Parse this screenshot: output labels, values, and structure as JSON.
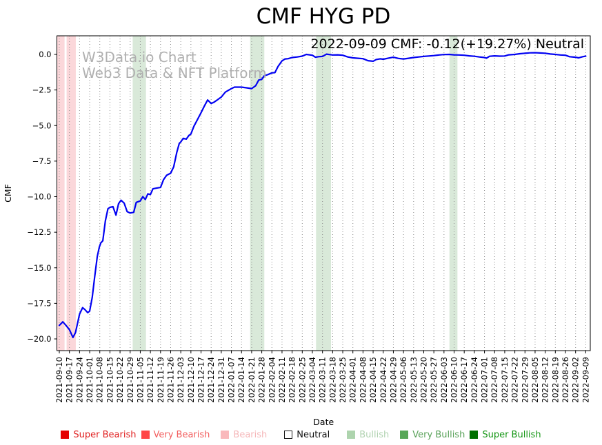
{
  "watermark": {
    "line1": "W3Data.io Chart",
    "line2": "Web3 Data & NFT Platform"
  },
  "chart_data": {
    "type": "line",
    "title": "CMF HYG PD",
    "annotation": "2022-09-09 CMF: -0.12(+19.27%) Neutral",
    "xlabel": "Date",
    "ylabel": "CMF",
    "ylim": [
      -20.8,
      1.3
    ],
    "grid": "vertical-dotted",
    "legend_position": "bottom",
    "line_color": "#0202f2",
    "ytick_values": [
      0.0,
      -2.5,
      -5.0,
      -7.5,
      -10.0,
      -12.5,
      -15.0,
      -17.5,
      -20.0
    ],
    "ytick_labels": [
      "0.0",
      "−2.5",
      "−5.0",
      "−7.5",
      "−10.0",
      "−12.5",
      "−15.0",
      "−17.5",
      "−20.0"
    ],
    "categories": [
      "2021-09-10",
      "2021-09-17",
      "2021-09-24",
      "2021-10-01",
      "2021-10-08",
      "2021-10-15",
      "2021-10-22",
      "2021-10-29",
      "2021-11-05",
      "2021-11-12",
      "2021-11-19",
      "2021-11-26",
      "2021-12-03",
      "2021-12-10",
      "2021-12-17",
      "2021-12-24",
      "2021-12-31",
      "2022-01-07",
      "2022-01-14",
      "2022-01-21",
      "2022-01-28",
      "2022-02-04",
      "2022-02-11",
      "2022-02-18",
      "2022-02-25",
      "2022-03-04",
      "2022-03-11",
      "2022-03-18",
      "2022-03-25",
      "2022-04-01",
      "2022-04-08",
      "2022-04-15",
      "2022-04-22",
      "2022-04-29",
      "2022-05-06",
      "2022-05-13",
      "2022-05-20",
      "2022-05-27",
      "2022-06-03",
      "2022-06-10",
      "2022-06-17",
      "2022-06-24",
      "2022-07-01",
      "2022-07-08",
      "2022-07-15",
      "2022-07-22",
      "2022-07-29",
      "2022-08-05",
      "2022-08-12",
      "2022-08-19",
      "2022-08-26",
      "2022-09-02",
      "2022-09-09"
    ],
    "values": [
      -19.05,
      -19.35,
      -18.25,
      -18.05,
      -13.5,
      -10.75,
      -10.3,
      -11.15,
      -10.3,
      -9.85,
      -9.35,
      -8.35,
      -6.15,
      -5.6,
      -4.1,
      -3.45,
      -3.0,
      -2.4,
      -2.3,
      -2.4,
      -1.75,
      -1.3,
      -0.45,
      -0.22,
      -0.12,
      -0.06,
      -0.14,
      -0.04,
      -0.06,
      -0.24,
      -0.3,
      -0.48,
      -0.34,
      -0.2,
      -0.32,
      -0.22,
      -0.14,
      -0.08,
      -0.01,
      -0.03,
      -0.06,
      -0.13,
      -0.22,
      -0.1,
      -0.11,
      0.0,
      0.08,
      0.12,
      0.08,
      0.0,
      -0.06,
      -0.2,
      -0.12
    ],
    "curve_points": [
      [
        0,
        -19.05
      ],
      [
        0.35,
        -18.8
      ],
      [
        0.6,
        -19.0
      ],
      [
        1.0,
        -19.35
      ],
      [
        1.35,
        -19.9
      ],
      [
        1.6,
        -19.55
      ],
      [
        2.0,
        -18.25
      ],
      [
        2.3,
        -17.8
      ],
      [
        2.55,
        -17.95
      ],
      [
        2.8,
        -18.15
      ],
      [
        3.0,
        -18.05
      ],
      [
        3.25,
        -17.1
      ],
      [
        3.5,
        -15.6
      ],
      [
        3.75,
        -14.2
      ],
      [
        3.95,
        -13.55
      ],
      [
        4.1,
        -13.25
      ],
      [
        4.3,
        -13.1
      ],
      [
        4.55,
        -11.7
      ],
      [
        4.8,
        -10.85
      ],
      [
        5.0,
        -10.75
      ],
      [
        5.3,
        -10.7
      ],
      [
        5.6,
        -11.3
      ],
      [
        5.85,
        -10.5
      ],
      [
        6.1,
        -10.25
      ],
      [
        6.4,
        -10.45
      ],
      [
        6.7,
        -11.05
      ],
      [
        7.0,
        -11.15
      ],
      [
        7.35,
        -11.1
      ],
      [
        7.6,
        -10.4
      ],
      [
        8.0,
        -10.3
      ],
      [
        8.25,
        -10.0
      ],
      [
        8.5,
        -10.2
      ],
      [
        8.75,
        -9.8
      ],
      [
        9.0,
        -9.85
      ],
      [
        9.25,
        -9.45
      ],
      [
        9.6,
        -9.4
      ],
      [
        10.0,
        -9.35
      ],
      [
        10.3,
        -8.8
      ],
      [
        10.6,
        -8.5
      ],
      [
        11.0,
        -8.35
      ],
      [
        11.3,
        -7.9
      ],
      [
        11.6,
        -6.9
      ],
      [
        11.85,
        -6.25
      ],
      [
        12.0,
        -6.15
      ],
      [
        12.25,
        -5.9
      ],
      [
        12.55,
        -5.95
      ],
      [
        12.8,
        -5.7
      ],
      [
        13.0,
        -5.6
      ],
      [
        13.3,
        -5.05
      ],
      [
        13.6,
        -4.65
      ],
      [
        14.0,
        -4.1
      ],
      [
        14.35,
        -3.6
      ],
      [
        14.65,
        -3.2
      ],
      [
        15.0,
        -3.45
      ],
      [
        15.3,
        -3.35
      ],
      [
        15.6,
        -3.2
      ],
      [
        16.0,
        -3.0
      ],
      [
        16.4,
        -2.65
      ],
      [
        17.0,
        -2.4
      ],
      [
        17.3,
        -2.3
      ],
      [
        18.0,
        -2.3
      ],
      [
        18.5,
        -2.35
      ],
      [
        19.0,
        -2.4
      ],
      [
        19.4,
        -2.2
      ],
      [
        19.7,
        -1.8
      ],
      [
        20.0,
        -1.75
      ],
      [
        20.25,
        -1.5
      ],
      [
        20.6,
        -1.42
      ],
      [
        21.0,
        -1.3
      ],
      [
        21.3,
        -1.28
      ],
      [
        21.6,
        -0.85
      ],
      [
        22.0,
        -0.45
      ],
      [
        22.3,
        -0.32
      ],
      [
        22.6,
        -0.3
      ],
      [
        23.0,
        -0.22
      ],
      [
        23.5,
        -0.18
      ],
      [
        24.0,
        -0.12
      ],
      [
        24.4,
        0.0
      ],
      [
        25.0,
        -0.06
      ],
      [
        25.3,
        -0.2
      ],
      [
        25.6,
        -0.16
      ],
      [
        26.0,
        -0.14
      ],
      [
        26.4,
        0.02
      ],
      [
        27.0,
        -0.04
      ],
      [
        27.5,
        -0.03
      ],
      [
        28.0,
        -0.06
      ],
      [
        28.5,
        -0.18
      ],
      [
        29.0,
        -0.24
      ],
      [
        29.5,
        -0.27
      ],
      [
        30.0,
        -0.3
      ],
      [
        30.5,
        -0.44
      ],
      [
        31.0,
        -0.48
      ],
      [
        31.3,
        -0.36
      ],
      [
        31.7,
        -0.31
      ],
      [
        32.0,
        -0.34
      ],
      [
        32.5,
        -0.26
      ],
      [
        33.0,
        -0.2
      ],
      [
        33.5,
        -0.28
      ],
      [
        34.0,
        -0.32
      ],
      [
        34.5,
        -0.27
      ],
      [
        35.0,
        -0.22
      ],
      [
        35.5,
        -0.18
      ],
      [
        36.0,
        -0.14
      ],
      [
        36.5,
        -0.11
      ],
      [
        37.0,
        -0.08
      ],
      [
        37.5,
        -0.04
      ],
      [
        38.0,
        -0.01
      ],
      [
        38.5,
        0.0
      ],
      [
        39.0,
        -0.03
      ],
      [
        39.5,
        -0.04
      ],
      [
        40.0,
        -0.06
      ],
      [
        40.5,
        -0.1
      ],
      [
        41.0,
        -0.13
      ],
      [
        41.5,
        -0.18
      ],
      [
        42.0,
        -0.22
      ],
      [
        42.2,
        -0.26
      ],
      [
        42.5,
        -0.13
      ],
      [
        43.0,
        -0.1
      ],
      [
        43.5,
        -0.12
      ],
      [
        44.0,
        -0.11
      ],
      [
        44.4,
        -0.03
      ],
      [
        45.0,
        0.0
      ],
      [
        45.5,
        0.05
      ],
      [
        46.0,
        0.08
      ],
      [
        46.5,
        0.11
      ],
      [
        47.0,
        0.12
      ],
      [
        47.5,
        0.1
      ],
      [
        48.0,
        0.08
      ],
      [
        48.5,
        0.03
      ],
      [
        49.0,
        0.0
      ],
      [
        49.5,
        -0.04
      ],
      [
        50.0,
        -0.06
      ],
      [
        50.4,
        -0.16
      ],
      [
        51.0,
        -0.2
      ],
      [
        51.3,
        -0.24
      ],
      [
        51.7,
        -0.16
      ],
      [
        52.0,
        -0.12
      ]
    ],
    "bands": [
      {
        "type": "bearish",
        "from": -0.24,
        "to": 0.52
      },
      {
        "type": "bearish",
        "from": 0.72,
        "to": 1.63
      },
      {
        "type": "bullish",
        "from": 7.25,
        "to": 8.56
      },
      {
        "type": "bullish",
        "from": 18.85,
        "to": 20.25
      },
      {
        "type": "bullish",
        "from": 25.36,
        "to": 26.84
      },
      {
        "type": "bullish",
        "from": 38.54,
        "to": 39.33
      }
    ],
    "band_colors": {
      "bearish": "#fbd7da",
      "bullish": "#d9e9d9"
    },
    "legend": [
      {
        "label": "Super Bearish",
        "swatch": "#e50000",
        "text_color": "#e02020",
        "border": "#e50000"
      },
      {
        "label": "Very Bearish",
        "swatch": "#ff4646",
        "text_color": "#f25c5c",
        "border": "#ff4646"
      },
      {
        "label": "Bearish",
        "swatch": "#f9b8bb",
        "text_color": "#f5b6b8",
        "border": "#f9b8bb"
      },
      {
        "label": "Neutral",
        "swatch": "#ffffff",
        "text_color": "#111111",
        "border": "#111111"
      },
      {
        "label": "Bullish",
        "swatch": "#aed4ae",
        "text_color": "#b0d2b0",
        "border": "#aed4ae"
      },
      {
        "label": "Very Bullish",
        "swatch": "#58a758",
        "text_color": "#58a158",
        "border": "#58a758"
      },
      {
        "label": "Super Bullish",
        "swatch": "#007000",
        "text_color": "#149614",
        "border": "#007000"
      }
    ]
  }
}
